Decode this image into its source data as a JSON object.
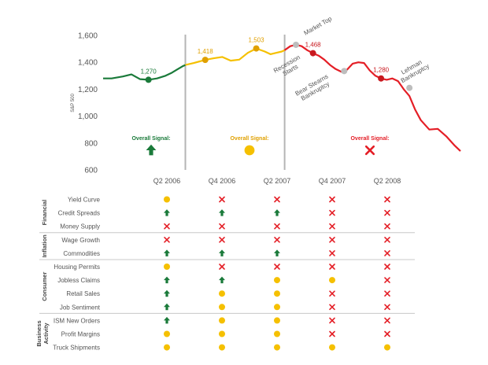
{
  "chart_data": {
    "type": "line",
    "ylabel": "S&P 500",
    "ylim": [
      600,
      1600
    ],
    "yticks": [
      600,
      800,
      1000,
      1200,
      1400,
      1600
    ],
    "x_ticks": [
      "Q2 2006",
      "Q4 2006",
      "Q2 2007",
      "Q4 2007",
      "Q2 2008"
    ],
    "colors": {
      "green": "#1a7a3a",
      "yellow": "#f5c000",
      "red": "#e41e26",
      "gray": "#bdbdbd",
      "ann_yellow": "#e0a000",
      "ann_red": "#c8191f"
    },
    "series": [
      {
        "phase": "green",
        "color": "green",
        "points": [
          [
            0,
            1280
          ],
          [
            3,
            1280
          ],
          [
            7,
            1295
          ],
          [
            10,
            1310
          ],
          [
            13,
            1275
          ],
          [
            16,
            1270
          ],
          [
            19,
            1280
          ],
          [
            22,
            1300
          ],
          [
            24,
            1320
          ],
          [
            26,
            1345
          ],
          [
            28,
            1370
          ],
          [
            29,
            1380
          ]
        ]
      },
      {
        "phase": "yellow",
        "color": "yellow",
        "points": [
          [
            29,
            1380
          ],
          [
            32,
            1395
          ],
          [
            36,
            1418
          ],
          [
            39,
            1430
          ],
          [
            42,
            1440
          ],
          [
            45,
            1412
          ],
          [
            48,
            1420
          ],
          [
            51,
            1470
          ],
          [
            54,
            1503
          ],
          [
            57,
            1480
          ],
          [
            59,
            1460
          ],
          [
            61,
            1470
          ],
          [
            63,
            1480
          ],
          [
            64,
            1490
          ]
        ]
      },
      {
        "phase": "red",
        "color": "red",
        "points": [
          [
            64,
            1490
          ],
          [
            66,
            1520
          ],
          [
            68,
            1530
          ],
          [
            70,
            1520
          ],
          [
            72,
            1490
          ],
          [
            74,
            1468
          ],
          [
            76,
            1450
          ],
          [
            78,
            1420
          ],
          [
            80,
            1380
          ],
          [
            82,
            1350
          ],
          [
            84,
            1330
          ],
          [
            86,
            1345
          ],
          [
            88,
            1390
          ],
          [
            90,
            1400
          ],
          [
            92,
            1395
          ],
          [
            94,
            1340
          ],
          [
            96,
            1300
          ],
          [
            98,
            1280
          ],
          [
            100,
            1270
          ],
          [
            102,
            1280
          ],
          [
            104,
            1260
          ],
          [
            106,
            1200
          ],
          [
            108,
            1150
          ],
          [
            110,
            1050
          ],
          [
            112,
            970
          ],
          [
            115,
            900
          ],
          [
            118,
            905
          ],
          [
            121,
            850
          ],
          [
            124,
            780
          ],
          [
            126,
            740
          ]
        ]
      }
    ],
    "point_labels": [
      {
        "x": 16,
        "y": 1270,
        "label": "1,270",
        "color": "green"
      },
      {
        "x": 36,
        "y": 1418,
        "label": "1,418",
        "color": "ann_yellow"
      },
      {
        "x": 54,
        "y": 1503,
        "label": "1,503",
        "color": "ann_yellow"
      },
      {
        "x": 74,
        "y": 1468,
        "label": "1,468",
        "color": "ann_red"
      },
      {
        "x": 98,
        "y": 1280,
        "label": "1,280",
        "color": "ann_red"
      }
    ],
    "events": [
      {
        "x": 68,
        "y": 1530,
        "label": "Market Top"
      },
      {
        "x": 74,
        "y": 1468,
        "label": "Recession Starts"
      },
      {
        "x": 85,
        "y": 1335,
        "label": "Bear Stearns Bankruptcy"
      },
      {
        "x": 108,
        "y": 1210,
        "label": "Lehman Bankruptcy"
      }
    ],
    "signals": [
      {
        "label": "Overall Signal:",
        "icon": "up",
        "color": "green"
      },
      {
        "label": "Overall Signal:",
        "icon": "circle",
        "color": "yellow"
      },
      {
        "label": "Overall Signal:",
        "icon": "x",
        "color": "red"
      }
    ],
    "dividers_x": [
      29,
      64
    ]
  },
  "table": {
    "groups": [
      {
        "name": "Financial",
        "rows": [
          {
            "label": "Yield Curve",
            "signals": [
              "circle",
              "x",
              "x",
              "x",
              "x"
            ]
          },
          {
            "label": "Credit Spreads",
            "signals": [
              "up",
              "up",
              "up",
              "x",
              "x"
            ]
          },
          {
            "label": "Money Supply",
            "signals": [
              "x",
              "x",
              "x",
              "x",
              "x"
            ]
          }
        ]
      },
      {
        "name": "Inflation",
        "rows": [
          {
            "label": "Wage Growth",
            "signals": [
              "x",
              "x",
              "x",
              "x",
              "x"
            ]
          },
          {
            "label": "Commodities",
            "signals": [
              "up",
              "up",
              "up",
              "x",
              "x"
            ]
          }
        ]
      },
      {
        "name": "Consumer",
        "rows": [
          {
            "label": "Housing Permits",
            "signals": [
              "circle",
              "x",
              "x",
              "x",
              "x"
            ]
          },
          {
            "label": "Jobless Claims",
            "signals": [
              "up",
              "up",
              "circle",
              "circle",
              "x"
            ]
          },
          {
            "label": "Retail Sales",
            "signals": [
              "up",
              "circle",
              "circle",
              "x",
              "x"
            ]
          },
          {
            "label": "Job Sentiment",
            "signals": [
              "up",
              "circle",
              "circle",
              "x",
              "x"
            ]
          }
        ]
      },
      {
        "name": "Business Activity",
        "rows": [
          {
            "label": "ISM New Orders",
            "signals": [
              "up",
              "circle",
              "circle",
              "x",
              "x"
            ]
          },
          {
            "label": "Profit Margins",
            "signals": [
              "circle",
              "circle",
              "circle",
              "x",
              "x"
            ]
          },
          {
            "label": "Truck Shipments",
            "signals": [
              "circle",
              "circle",
              "circle",
              "circle",
              "circle"
            ]
          }
        ]
      }
    ]
  }
}
